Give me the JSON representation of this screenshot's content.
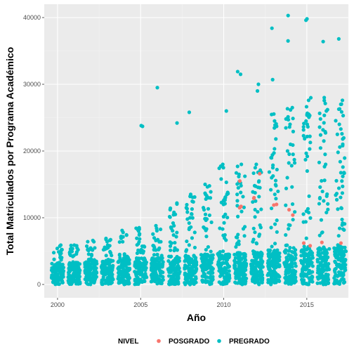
{
  "chart_data": {
    "type": "scatter",
    "xlabel": "Año",
    "ylabel": "Total Matriculados por Programa Académico",
    "xlim": [
      1999.2,
      2017.5
    ],
    "ylim": [
      -2000,
      42000
    ],
    "x_ticks": [
      2000,
      2005,
      2010,
      2015
    ],
    "y_ticks": [
      0,
      10000,
      20000,
      30000,
      40000
    ],
    "x_tick_labels": [
      "2000",
      "2005",
      "2010",
      "2015"
    ],
    "y_tick_labels": [
      "0",
      "10000",
      "20000",
      "30000",
      "40000"
    ],
    "grid": true,
    "legend": {
      "title": "NIVEL",
      "placement": "bottom",
      "entries": [
        {
          "name": "POSGRADO",
          "color": "#F8766D"
        },
        {
          "name": "PREGRADO",
          "color": "#00BFC4"
        }
      ]
    },
    "years": [
      2000,
      2001,
      2002,
      2003,
      2004,
      2005,
      2006,
      2007,
      2008,
      2009,
      2010,
      2011,
      2012,
      2013,
      2014,
      2015,
      2016,
      2017
    ],
    "column_max": [
      6000,
      6000,
      6800,
      7000,
      7800,
      8500,
      8800,
      12200,
      13500,
      15000,
      18000,
      18000,
      18000,
      26000,
      26500,
      28000,
      28500,
      30000
    ],
    "series": [
      {
        "name": "PREGRADO",
        "color": "#00BFC4",
        "points": [
          [
            2000,
            5900
          ],
          [
            2000,
            4500
          ],
          [
            2001,
            5800
          ],
          [
            2001,
            4200
          ],
          [
            2002,
            6600
          ],
          [
            2002,
            6400
          ],
          [
            2002,
            5200
          ],
          [
            2003,
            6900
          ],
          [
            2003,
            6600
          ],
          [
            2003,
            5400
          ],
          [
            2004,
            8100
          ],
          [
            2004,
            7800
          ],
          [
            2004,
            7200
          ],
          [
            2004,
            4200
          ],
          [
            2005,
            23800
          ],
          [
            2005,
            23700
          ],
          [
            2005,
            8500
          ],
          [
            2005,
            8200
          ],
          [
            2005,
            8000
          ],
          [
            2005,
            4800
          ],
          [
            2006,
            29500
          ],
          [
            2006,
            8800
          ],
          [
            2006,
            8400
          ],
          [
            2006,
            5200
          ],
          [
            2007,
            24200
          ],
          [
            2007,
            12200
          ],
          [
            2007,
            10500
          ],
          [
            2007,
            9200
          ],
          [
            2007,
            8800
          ],
          [
            2007,
            8400
          ],
          [
            2008,
            25800
          ],
          [
            2008,
            13500
          ],
          [
            2008,
            11300
          ],
          [
            2008,
            10000
          ],
          [
            2008,
            9200
          ],
          [
            2008,
            8600
          ],
          [
            2009,
            15000
          ],
          [
            2009,
            13500
          ],
          [
            2009,
            12800
          ],
          [
            2009,
            11200
          ],
          [
            2009,
            10500
          ],
          [
            2009,
            9800
          ],
          [
            2010,
            26000
          ],
          [
            2010,
            18000
          ],
          [
            2010,
            17500
          ],
          [
            2010,
            15800
          ],
          [
            2010,
            13500
          ],
          [
            2010,
            12000
          ],
          [
            2010,
            10500
          ],
          [
            2011,
            31900
          ],
          [
            2011,
            31500
          ],
          [
            2011,
            18000
          ],
          [
            2011,
            16500
          ],
          [
            2011,
            14800
          ],
          [
            2011,
            13500
          ],
          [
            2011,
            11800
          ],
          [
            2012,
            30000
          ],
          [
            2012,
            29000
          ],
          [
            2012,
            18000
          ],
          [
            2012,
            16800
          ],
          [
            2012,
            15500
          ],
          [
            2012,
            14500
          ],
          [
            2012,
            12500
          ],
          [
            2013,
            38400
          ],
          [
            2013,
            30700
          ],
          [
            2013,
            23700
          ],
          [
            2013,
            21800
          ],
          [
            2013,
            19000
          ],
          [
            2013,
            17500
          ],
          [
            2013,
            16000
          ],
          [
            2013,
            14800
          ],
          [
            2014,
            40300
          ],
          [
            2014,
            36500
          ],
          [
            2014,
            26500
          ],
          [
            2014,
            24000
          ],
          [
            2014,
            23600
          ],
          [
            2014,
            21000
          ],
          [
            2014,
            19500
          ],
          [
            2014,
            17800
          ],
          [
            2014,
            16000
          ],
          [
            2015,
            39800
          ],
          [
            2015,
            39600
          ],
          [
            2015,
            27600
          ],
          [
            2015,
            25500
          ],
          [
            2015,
            24000
          ],
          [
            2015,
            22200
          ],
          [
            2015,
            20300
          ],
          [
            2015,
            19200
          ],
          [
            2015,
            17000
          ],
          [
            2016,
            36400
          ],
          [
            2016,
            28000
          ],
          [
            2016,
            26000
          ],
          [
            2016,
            24800
          ],
          [
            2016,
            22900
          ],
          [
            2016,
            21500
          ],
          [
            2016,
            19500
          ],
          [
            2016,
            18000
          ],
          [
            2017,
            36800
          ],
          [
            2017,
            27000
          ],
          [
            2017,
            26300
          ],
          [
            2017,
            25300
          ],
          [
            2017,
            24000
          ],
          [
            2017,
            22500
          ],
          [
            2017,
            21800
          ],
          [
            2017,
            20800
          ],
          [
            2017,
            19800
          ],
          [
            2017,
            18400
          ],
          [
            2017,
            17600
          ],
          [
            2017,
            16200
          ],
          [
            2017,
            15500
          ],
          [
            2017,
            14700
          ],
          [
            2017,
            13700
          ],
          [
            2017,
            12700
          ],
          [
            2017,
            11400
          ]
        ]
      },
      {
        "name": "POSGRADO",
        "color": "#F8766D",
        "points": [
          [
            2011,
            15500
          ],
          [
            2011,
            11700
          ],
          [
            2011,
            11500
          ],
          [
            2012,
            16600
          ],
          [
            2012,
            13000
          ],
          [
            2012,
            12900
          ],
          [
            2013,
            12000
          ],
          [
            2013,
            11900
          ],
          [
            2014,
            11200
          ],
          [
            2014,
            10400
          ],
          [
            2015,
            6200
          ],
          [
            2015,
            5800
          ],
          [
            2016,
            6300
          ],
          [
            2017,
            6200
          ]
        ]
      }
    ]
  }
}
